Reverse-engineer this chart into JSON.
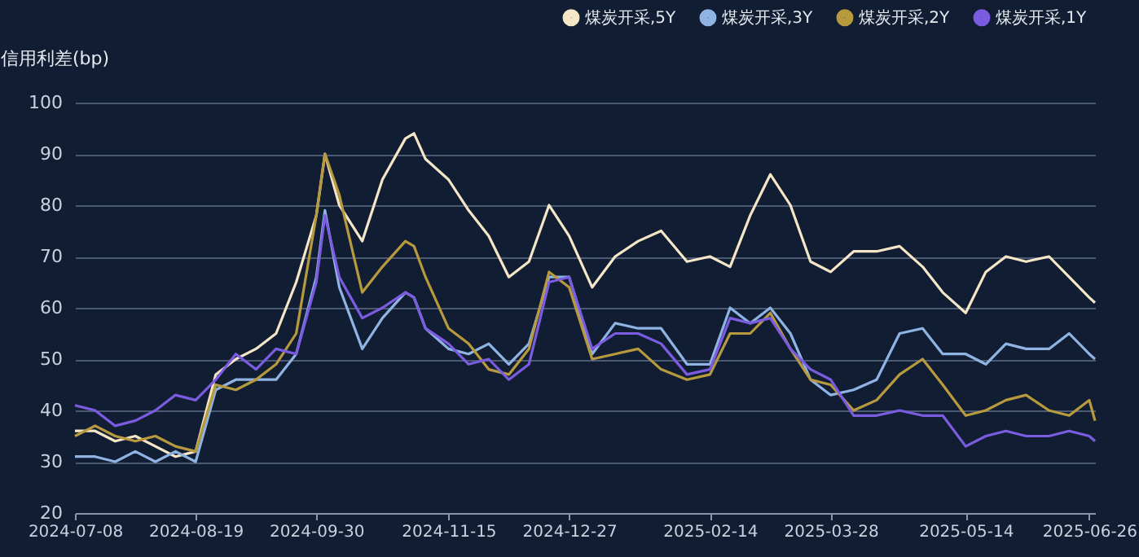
{
  "chart_data": {
    "type": "line",
    "ylabel": "信用利差(bp)",
    "legend": "top right",
    "grid": "y",
    "marker": "none",
    "line_style": "solid",
    "x": [
      "2024-07-08",
      "2024-07-15",
      "2024-07-22",
      "2024-07-29",
      "2024-08-05",
      "2024-08-12",
      "2024-08-19",
      "2024-08-26",
      "2024-09-02",
      "2024-09-09",
      "2024-09-16",
      "2024-09-23",
      "2024-09-30",
      "2024-10-03",
      "2024-10-08",
      "2024-10-16",
      "2024-10-23",
      "2024-10-31",
      "2024-11-03",
      "2024-11-07",
      "2024-11-15",
      "2024-11-22",
      "2024-11-29",
      "2024-12-06",
      "2024-12-13",
      "2024-12-20",
      "2024-12-27",
      "2025-01-04",
      "2025-01-12",
      "2025-01-20",
      "2025-01-28",
      "2025-02-06",
      "2025-02-14",
      "2025-02-21",
      "2025-02-28",
      "2025-03-07",
      "2025-03-14",
      "2025-03-21",
      "2025-03-28",
      "2025-04-05",
      "2025-04-13",
      "2025-04-21",
      "2025-04-29",
      "2025-05-06",
      "2025-05-14",
      "2025-05-21",
      "2025-05-28",
      "2025-06-04",
      "2025-06-12",
      "2025-06-19",
      "2025-06-26",
      "2025-06-28"
    ],
    "xlim": [
      "2024-07-08",
      "2025-06-28"
    ],
    "xticks": [
      "2024-07-08",
      "2024-08-19",
      "2024-09-30",
      "2024-11-15",
      "2024-12-27",
      "2025-02-14",
      "2025-03-28",
      "2025-05-14",
      "2025-06-26"
    ],
    "ylim": [
      20,
      100
    ],
    "yticks": [
      20,
      30,
      40,
      50,
      60,
      70,
      80,
      90,
      100
    ],
    "series": [
      {
        "name": "煤炭开采,5Y",
        "color": "#f5e6c8",
        "values": [
          36,
          36,
          34,
          35,
          33,
          31,
          32,
          47,
          50,
          52,
          55,
          65,
          78,
          90,
          80,
          73,
          85,
          93,
          94,
          89,
          85,
          79,
          74,
          66,
          69,
          80,
          74,
          64,
          70,
          73,
          75,
          69,
          70,
          68,
          78,
          86,
          80,
          69,
          67,
          71,
          71,
          72,
          68,
          63,
          59,
          67,
          70,
          69,
          70,
          66,
          62,
          61
        ]
      },
      {
        "name": "煤炭开采,3Y",
        "color": "#8fb4e3",
        "values": [
          31,
          31,
          30,
          32,
          30,
          32,
          30,
          44,
          46,
          46,
          46,
          51,
          66,
          79,
          64,
          52,
          58,
          63,
          62,
          56,
          52,
          51,
          53,
          49,
          53,
          66,
          66,
          51,
          57,
          56,
          56,
          49,
          49,
          60,
          57,
          60,
          55,
          46,
          43,
          44,
          46,
          55,
          56,
          51,
          51,
          49,
          53,
          52,
          52,
          55,
          51,
          50
        ]
      },
      {
        "name": "煤炭开采,2Y",
        "color": "#b89a3e",
        "values": [
          35,
          37,
          35,
          34,
          35,
          33,
          32,
          45,
          44,
          46,
          49,
          55,
          78,
          90,
          82,
          63,
          68,
          73,
          72,
          66,
          56,
          53,
          48,
          47,
          52,
          67,
          64,
          50,
          51,
          52,
          48,
          46,
          47,
          55,
          55,
          59,
          52,
          46,
          45,
          40,
          42,
          47,
          50,
          45,
          39,
          40,
          42,
          43,
          40,
          39,
          42,
          38
        ]
      },
      {
        "name": "煤炭开采,1Y",
        "color": "#7b5ce0",
        "values": [
          41,
          40,
          37,
          38,
          40,
          43,
          42,
          46,
          51,
          48,
          52,
          51,
          65,
          78,
          66,
          58,
          60,
          63,
          62,
          56,
          53,
          49,
          50,
          46,
          49,
          65,
          66,
          52,
          55,
          55,
          53,
          47,
          48,
          58,
          57,
          58,
          52,
          48,
          46,
          39,
          39,
          40,
          39,
          39,
          33,
          35,
          36,
          35,
          35,
          36,
          35,
          34
        ]
      }
    ]
  }
}
